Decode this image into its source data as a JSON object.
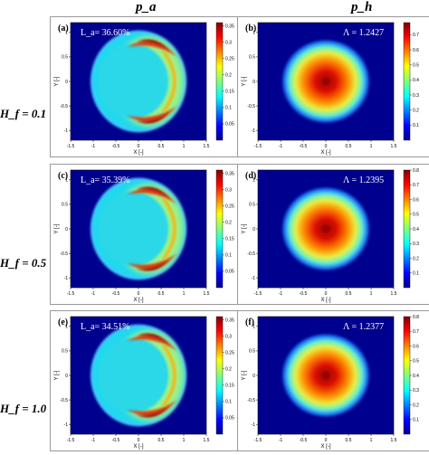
{
  "column_headers": [
    "p_a",
    "p_h"
  ],
  "row_headers": [
    "H_f = 0.1",
    "H_f = 0.5",
    "H_f = 1.0"
  ],
  "chart_data": [
    {
      "panel": "(a)",
      "type": "heatmap",
      "field": "p_a",
      "annotation": "L_a= 36.60%",
      "xlabel": "X [-]",
      "ylabel": "Y [-]",
      "xticks": [
        "-1.5",
        "-1",
        "-0.5",
        "0",
        "0.5",
        "1",
        "1.5"
      ],
      "yticks": [
        "-1",
        "-0.5",
        "0",
        "0.5",
        "1"
      ],
      "xlim": [
        -1.5,
        1.5
      ],
      "ylim": [
        -1.2,
        1.2
      ],
      "colorbar": {
        "min": 0,
        "max": 0.36,
        "ticks": [
          "0.35",
          "0.3",
          "0.25",
          "0.2",
          "0.15",
          "0.1",
          "0.05"
        ]
      }
    },
    {
      "panel": "(b)",
      "type": "heatmap",
      "field": "p_h",
      "annotation": "Λ = 1.2427",
      "xlabel": "X [-]",
      "ylabel": "Y [-]",
      "xticks": [
        "-1.5",
        "-1",
        "-0.5",
        "0",
        "0.5",
        "1",
        "1.5"
      ],
      "yticks": [
        "-1",
        "-0.5",
        "0",
        "0.5",
        "1"
      ],
      "xlim": [
        -1.5,
        1.5
      ],
      "ylim": [
        -1.2,
        1.2
      ],
      "colorbar": {
        "min": 0,
        "max": 0.78,
        "ticks": [
          "0.7",
          "0.6",
          "0.5",
          "0.4",
          "0.3",
          "0.2",
          "0.1"
        ]
      }
    },
    {
      "panel": "(c)",
      "type": "heatmap",
      "field": "p_a",
      "annotation": "L_a= 35.39%",
      "xlabel": "X [-]",
      "ylabel": "Y [-]",
      "xticks": [
        "-1.5",
        "-1",
        "-0.5",
        "0",
        "0.5",
        "1",
        "1.5"
      ],
      "yticks": [
        "-1",
        "-0.5",
        "0",
        "0.5",
        "1"
      ],
      "xlim": [
        -1.5,
        1.5
      ],
      "ylim": [
        -1.2,
        1.2
      ],
      "colorbar": {
        "min": 0,
        "max": 0.36,
        "ticks": [
          "0.35",
          "0.3",
          "0.25",
          "0.2",
          "0.15",
          "0.1",
          "0.05"
        ]
      }
    },
    {
      "panel": "(d)",
      "type": "heatmap",
      "field": "p_h",
      "annotation": "Λ = 1.2395",
      "xlabel": "X [-]",
      "ylabel": "Y [-]",
      "xticks": [
        "-1.5",
        "-1",
        "-0.5",
        "0",
        "0.5",
        "1",
        "1.5"
      ],
      "yticks": [
        "-1",
        "-0.5",
        "0",
        "0.5",
        "1"
      ],
      "xlim": [
        -1.5,
        1.5
      ],
      "ylim": [
        -1.2,
        1.2
      ],
      "colorbar": {
        "min": 0,
        "max": 0.8,
        "ticks": [
          "0.8",
          "0.7",
          "0.6",
          "0.5",
          "0.4",
          "0.3",
          "0.2",
          "0.1"
        ]
      }
    },
    {
      "panel": "(e)",
      "type": "heatmap",
      "field": "p_a",
      "annotation": "L_a= 34.51%",
      "xlabel": "X [-]",
      "ylabel": "Y [-]",
      "xticks": [
        "-1.5",
        "-1",
        "-0.5",
        "0",
        "0.5",
        "1",
        "1.5"
      ],
      "yticks": [
        "-1",
        "-0.5",
        "0",
        "0.5",
        "1"
      ],
      "xlim": [
        -1.5,
        1.5
      ],
      "ylim": [
        -1.2,
        1.2
      ],
      "colorbar": {
        "min": 0,
        "max": 0.36,
        "ticks": [
          "0.35",
          "0.3",
          "0.25",
          "0.2",
          "0.15",
          "0.1",
          "0.05"
        ]
      }
    },
    {
      "panel": "(f)",
      "type": "heatmap",
      "field": "p_h",
      "annotation": "Λ = 1.2377",
      "xlabel": "X [-]",
      "ylabel": "Y [-]",
      "xticks": [
        "-1.5",
        "-1",
        "-0.5",
        "0",
        "0.5",
        "1",
        "1.5"
      ],
      "yticks": [
        "-1",
        "-0.5",
        "0",
        "0.5",
        "1"
      ],
      "xlim": [
        -1.5,
        1.5
      ],
      "ylim": [
        -1.2,
        1.2
      ],
      "colorbar": {
        "min": 0,
        "max": 0.8,
        "ticks": [
          "0.8",
          "0.7",
          "0.6",
          "0.5",
          "0.4",
          "0.3",
          "0.2",
          "0.1"
        ]
      }
    }
  ],
  "colors": {
    "jet_low": "#00008f",
    "jet_mid": "#7fff7f",
    "jet_high": "#800000",
    "panel_border": "#999999"
  }
}
